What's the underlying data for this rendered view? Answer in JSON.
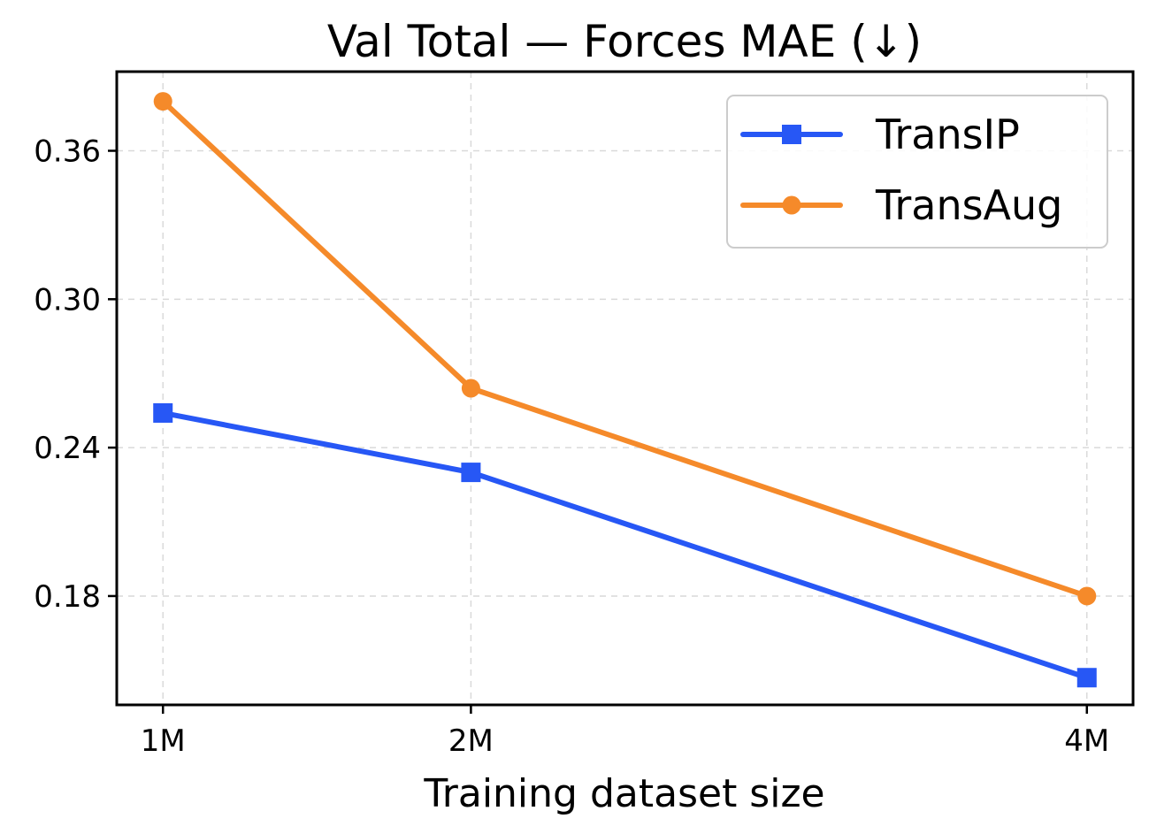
{
  "chart_data": {
    "type": "line",
    "title": "Val Total — Forces MAE (↓)",
    "xlabel": "Training dataset size",
    "ylabel": "",
    "x": [
      1,
      2,
      4
    ],
    "x_tick_labels": [
      "1M",
      "2M",
      "4M"
    ],
    "y_ticks": [
      0.18,
      0.24,
      0.3,
      0.36
    ],
    "y_tick_labels": [
      "0.18",
      "0.24",
      "0.30",
      "0.36"
    ],
    "xlim": [
      0.85,
      4.15
    ],
    "ylim": [
      0.136,
      0.392
    ],
    "grid": true,
    "legend_position": "top-right",
    "series": [
      {
        "name": "TransIP",
        "values": [
          0.254,
          0.23,
          0.147
        ],
        "color": "#2757f5",
        "marker": "square"
      },
      {
        "name": "TransAug",
        "values": [
          0.38,
          0.264,
          0.18
        ],
        "color": "#f58a2a",
        "marker": "circle"
      }
    ]
  }
}
